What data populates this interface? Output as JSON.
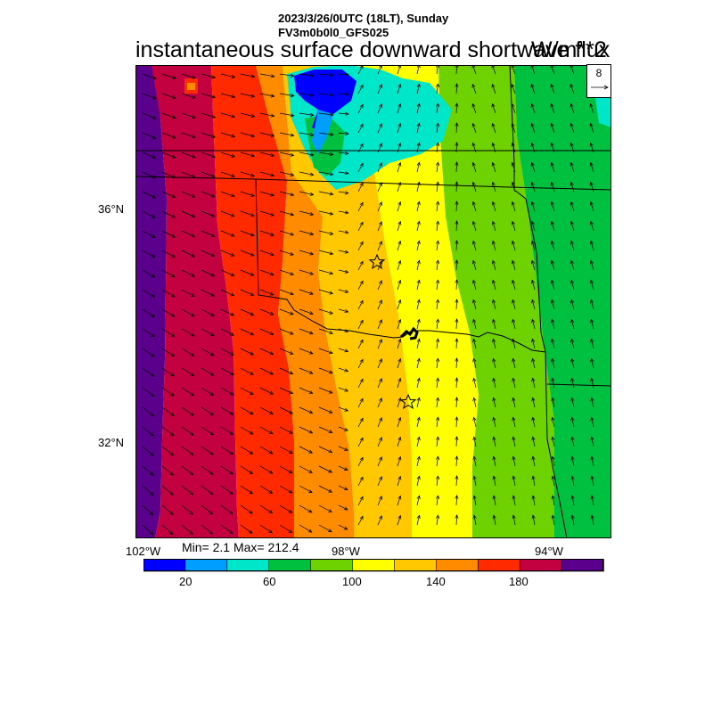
{
  "header": {
    "line1": "2023/3/26/0UTC (18LT), Sunday",
    "line2": "FV3m0b0l0_GFS025"
  },
  "title": "instantaneous surface downward shortwave flux",
  "units": "W/m**2",
  "vector_reference": {
    "value": "8"
  },
  "map": {
    "lat_labels": [
      "36°N",
      "32°N"
    ],
    "lon_labels": [
      "102°W",
      "98°W",
      "94°W"
    ],
    "markers": [
      "star",
      "star"
    ]
  },
  "stats": {
    "text": "Min= 2.1 Max= 212.4"
  },
  "colorbar": {
    "colors": [
      "#0000ff",
      "#009fff",
      "#00e6c8",
      "#00c040",
      "#6ed200",
      "#ffff00",
      "#ffc800",
      "#ff8c00",
      "#ff2a00",
      "#c30040",
      "#5a008c"
    ],
    "tick_labels": [
      "20",
      "60",
      "100",
      "140",
      "180"
    ]
  },
  "field_bands": [
    {
      "value": 210,
      "color": "#5a008c"
    },
    {
      "value": 190,
      "color": "#c30040"
    },
    {
      "value": 170,
      "color": "#ff2a00"
    },
    {
      "value": 150,
      "color": "#ff8c00"
    },
    {
      "value": 130,
      "color": "#ffc800"
    },
    {
      "value": 110,
      "color": "#ffff00"
    },
    {
      "value": 90,
      "color": "#6ed200"
    },
    {
      "value": 70,
      "color": "#00c040"
    },
    {
      "value": 50,
      "color": "#00e6c8"
    }
  ]
}
